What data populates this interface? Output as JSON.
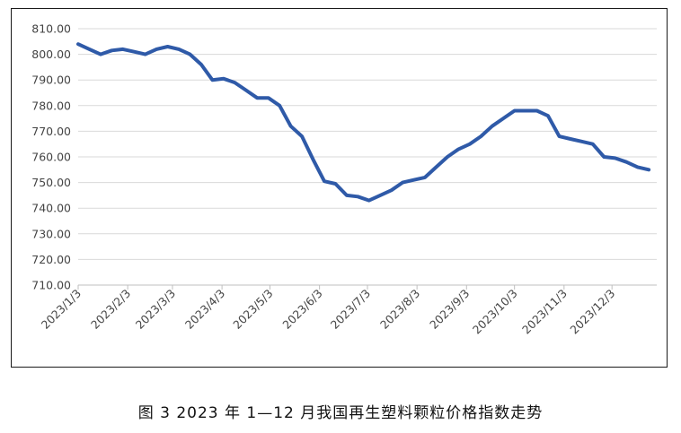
{
  "chart_data": {
    "type": "line",
    "title": "",
    "xlabel": "",
    "ylabel": "",
    "ylim": [
      710,
      810
    ],
    "y_ticks": [
      "810.00",
      "800.00",
      "790.00",
      "780.00",
      "770.00",
      "760.00",
      "750.00",
      "740.00",
      "730.00",
      "720.00",
      "710.00"
    ],
    "x_ticks": [
      "2023/1/3",
      "2023/2/3",
      "2023/3/3",
      "2023/4/3",
      "2023/5/3",
      "2023/6/3",
      "2023/7/3",
      "2023/8/3",
      "2023/9/3",
      "2023/10/3",
      "2023/11/3",
      "2023/12/3"
    ],
    "grid": "horizontal",
    "legend": "none",
    "line_color": "#2f5aa8",
    "series": [
      {
        "x": [
          "2023/1/3",
          "2023/1/10",
          "2023/1/17",
          "2023/1/24",
          "2023/1/31",
          "2023/2/7",
          "2023/2/14",
          "2023/2/21",
          "2023/2/28",
          "2023/3/7",
          "2023/3/14",
          "2023/3/21",
          "2023/3/28",
          "2023/4/4",
          "2023/4/11",
          "2023/4/18",
          "2023/4/25",
          "2023/5/2",
          "2023/5/9",
          "2023/5/16",
          "2023/5/23",
          "2023/5/30",
          "2023/6/6",
          "2023/6/13",
          "2023/6/20",
          "2023/6/27",
          "2023/7/4",
          "2023/7/11",
          "2023/7/18",
          "2023/7/25",
          "2023/8/1",
          "2023/8/8",
          "2023/8/15",
          "2023/8/22",
          "2023/8/29",
          "2023/9/5",
          "2023/9/12",
          "2023/9/19",
          "2023/9/26",
          "2023/10/3",
          "2023/10/10",
          "2023/10/17",
          "2023/10/24",
          "2023/10/31",
          "2023/11/7",
          "2023/11/14",
          "2023/11/21",
          "2023/11/28",
          "2023/12/5",
          "2023/12/12",
          "2023/12/19",
          "2023/12/26"
        ],
        "values": [
          804,
          802,
          800,
          801.5,
          802,
          801,
          800,
          802,
          803,
          802,
          800,
          796,
          790,
          790.5,
          789,
          786,
          783,
          783,
          780,
          772,
          768,
          759,
          750.5,
          749.5,
          745,
          744.5,
          743,
          745,
          747,
          750,
          751,
          752,
          756,
          760,
          763,
          765,
          768,
          772,
          775,
          778,
          778,
          778,
          776,
          768,
          767,
          766,
          765,
          760,
          759.5,
          758,
          756,
          755
        ]
      }
    ]
  },
  "caption": "图 3  2023 年 1—12 月我国再生塑料颗粒价格指数走势"
}
